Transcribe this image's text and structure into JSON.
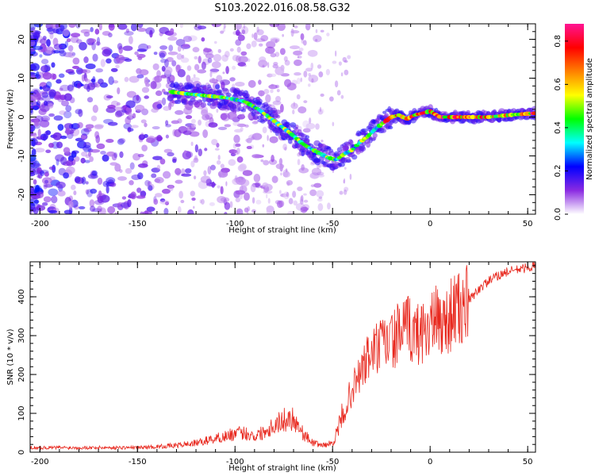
{
  "figure_title": "S103.2022.016.08.58.G32",
  "chart_data": [
    {
      "type": "heatmap",
      "xlabel": "Height of straight line (km)",
      "ylabel": "Frequency (Hz)",
      "xlim": [
        -205,
        54
      ],
      "ylim": [
        -25,
        24
      ],
      "xticks": [
        -200,
        -150,
        -100,
        -50,
        0,
        50
      ],
      "yticks": [
        -20,
        -10,
        0,
        10,
        20
      ],
      "colorbar": {
        "label": "Normalized spectral amplitude",
        "range": [
          0,
          0.88
        ],
        "ticks": [
          0.0,
          0.2,
          0.4,
          0.6,
          0.8
        ],
        "colormap": [
          "#ffffff",
          "#8a2be2",
          "#0000ff",
          "#00ffff",
          "#00ff00",
          "#ffff00",
          "#ff8000",
          "#ff0000",
          "#ff1493"
        ]
      },
      "ridge": {
        "x": [
          -133,
          -125,
          -115,
          -105,
          -95,
          -88,
          -80,
          -72,
          -65,
          -58,
          -52,
          -48,
          -44,
          -40,
          -36,
          -32,
          -28,
          -24,
          -20,
          -16,
          -12,
          -8,
          -4,
          0,
          5,
          10,
          20,
          30,
          40,
          54
        ],
        "y": [
          6.5,
          6,
          5.5,
          5,
          4,
          2,
          -1,
          -4,
          -7,
          -9,
          -10.5,
          -11,
          -9.5,
          -8.5,
          -6.5,
          -5,
          -3,
          -1.5,
          0,
          0.5,
          -0.5,
          0.5,
          1,
          1.5,
          0,
          0,
          0,
          0,
          0.5,
          1
        ]
      },
      "grid": false
    },
    {
      "type": "line",
      "xlabel": "Height of straight line (km)",
      "ylabel": "SNR (10 * v/v)",
      "xlim": [
        -205,
        54
      ],
      "ylim": [
        0,
        490
      ],
      "xticks": [
        -200,
        -150,
        -100,
        -50,
        0,
        50
      ],
      "yticks": [
        0,
        100,
        200,
        300,
        400
      ],
      "line_color": "#e8281e",
      "series": [
        {
          "x": [
            -205,
            -190,
            -175,
            -160,
            -150,
            -140,
            -130,
            -120,
            -110,
            -100,
            -95,
            -90,
            -85,
            -80,
            -75,
            -70,
            -65,
            -60,
            -55,
            -50,
            -47,
            -44,
            -41,
            -38,
            -35,
            -32,
            -29,
            -26,
            -23,
            -20,
            -17,
            -14,
            -11,
            -8,
            -5,
            -2,
            1,
            4,
            7,
            10,
            13,
            16,
            20,
            25,
            30,
            35,
            40,
            45,
            50,
            54
          ],
          "values": [
            10,
            10,
            10,
            10,
            10,
            12,
            15,
            20,
            30,
            40,
            42,
            35,
            45,
            60,
            70,
            75,
            40,
            20,
            15,
            20,
            50,
            100,
            150,
            180,
            210,
            240,
            260,
            270,
            280,
            285,
            300,
            310,
            320,
            300,
            310,
            320,
            330,
            340,
            330,
            350,
            370,
            360,
            390,
            420,
            440,
            455,
            465,
            470,
            475,
            480
          ]
        }
      ],
      "grid": false
    }
  ]
}
